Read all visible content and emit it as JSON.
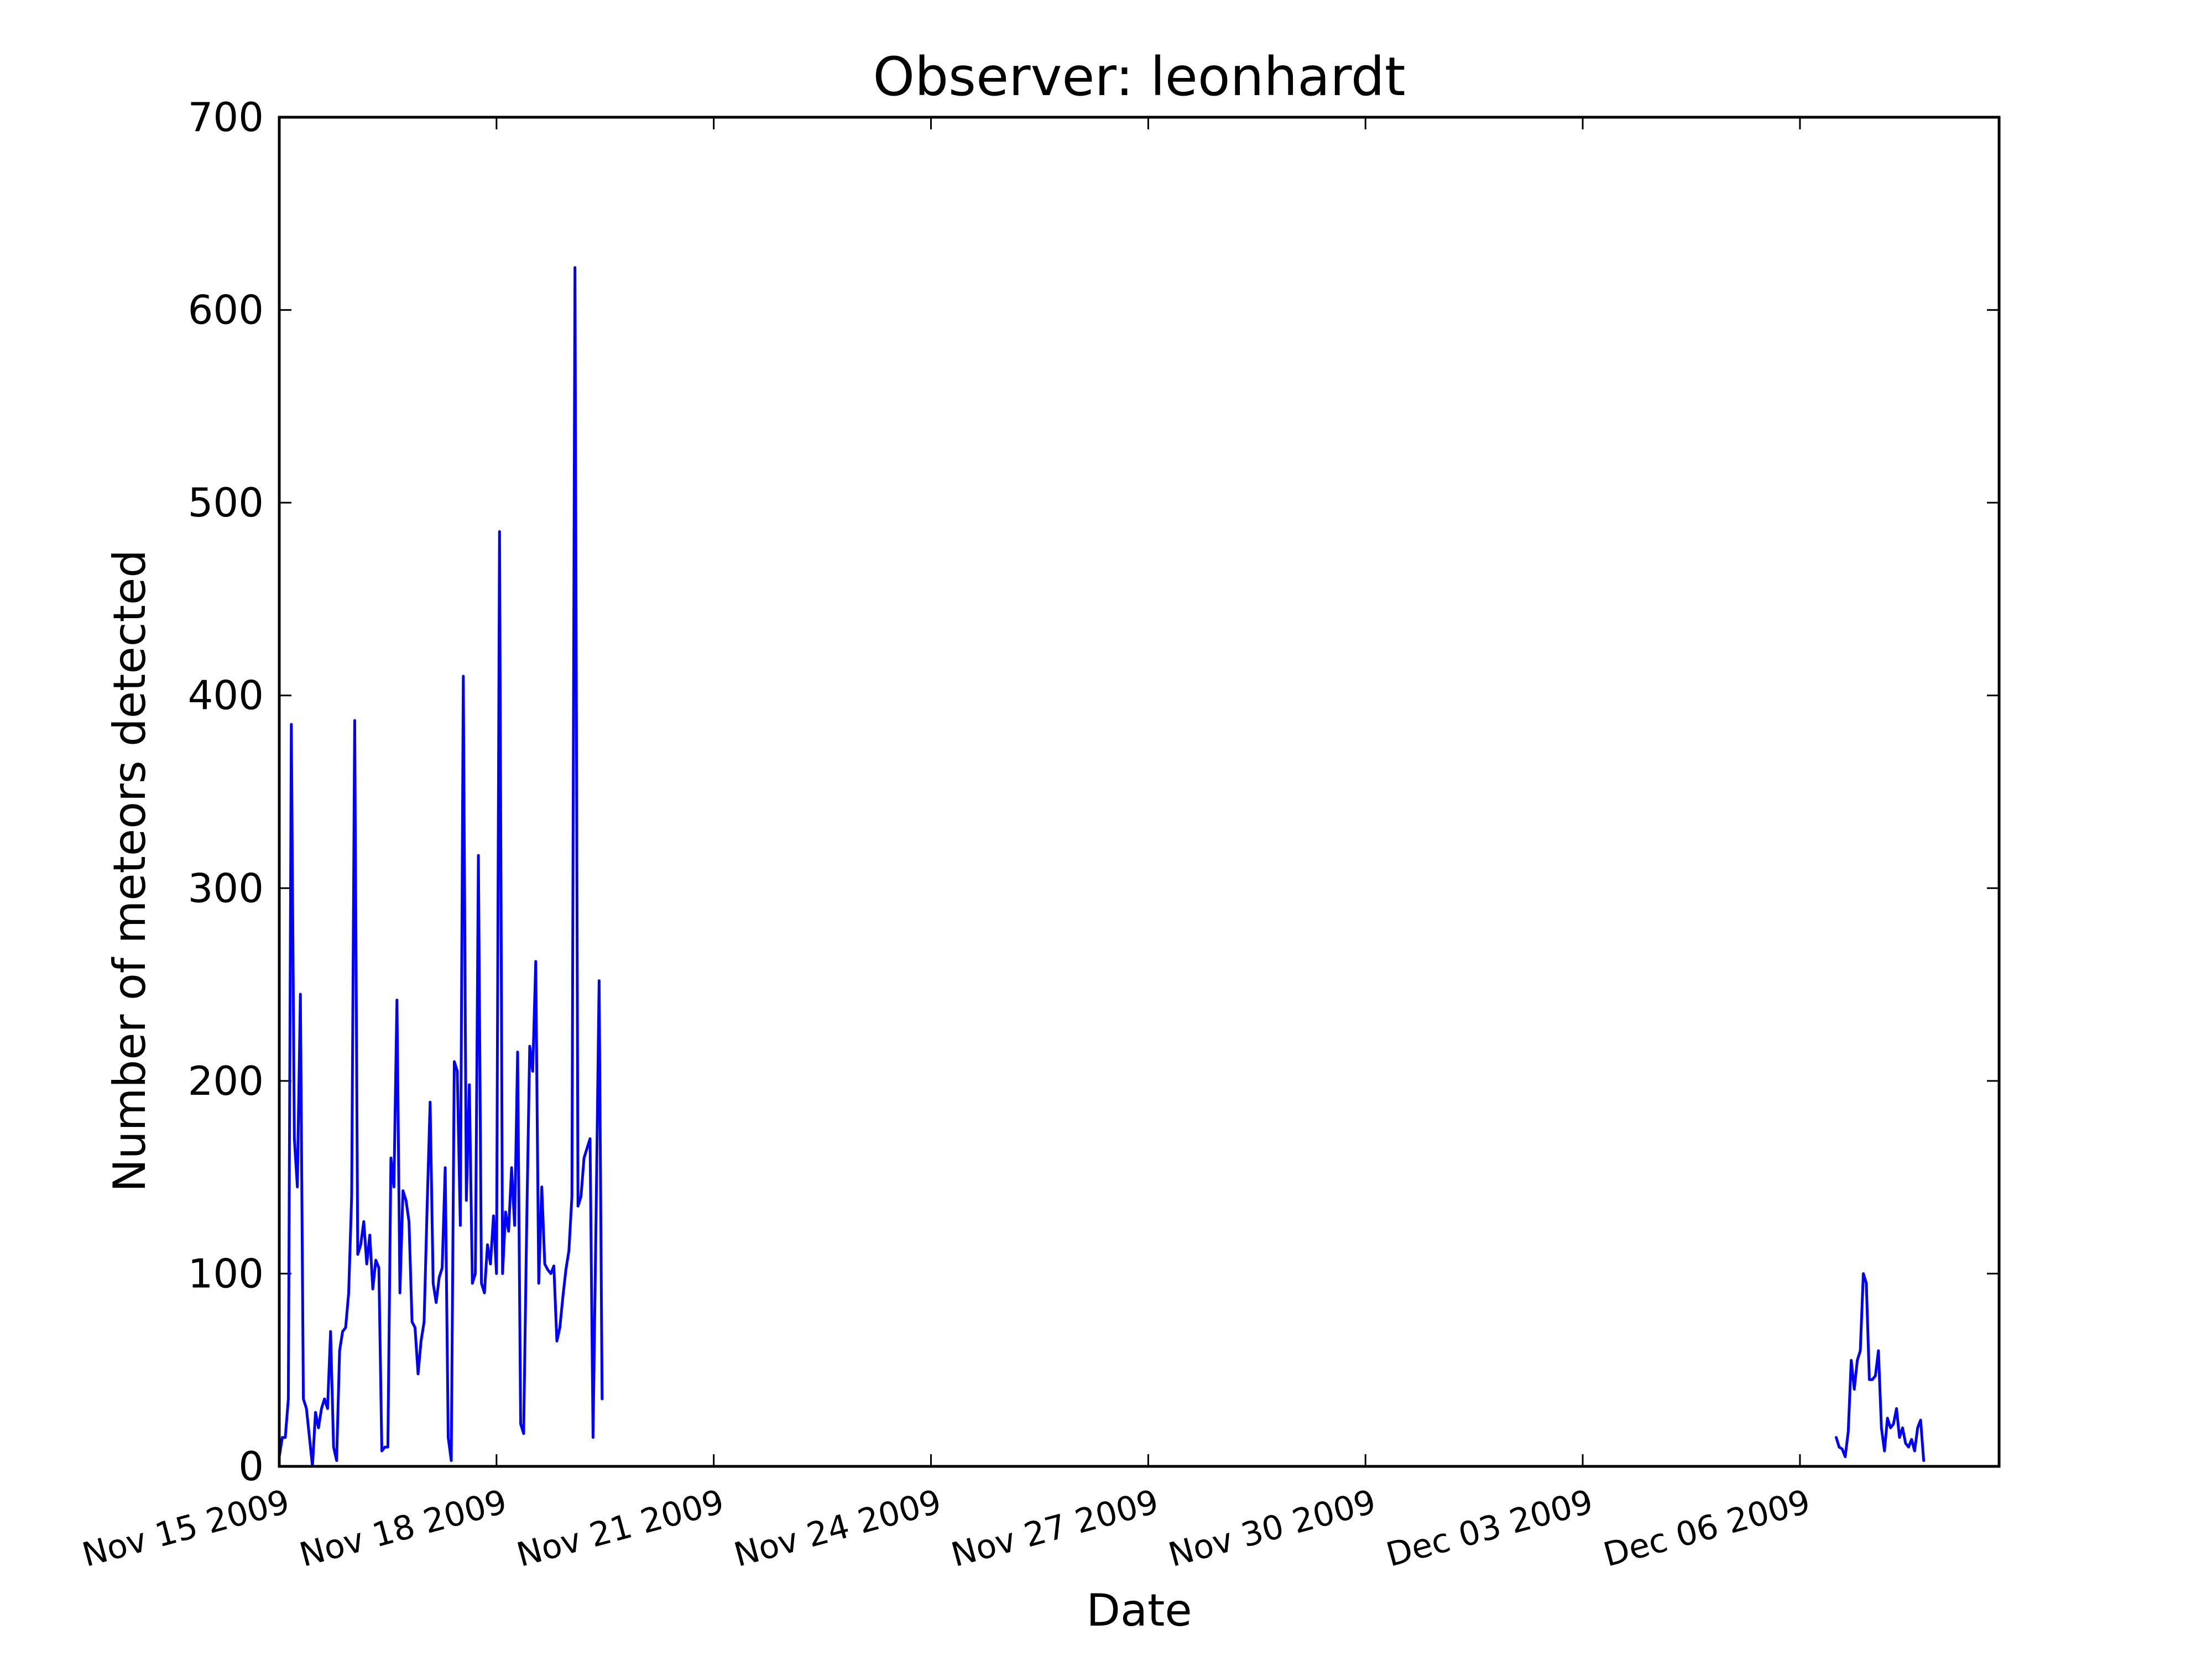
{
  "chart_data": {
    "type": "line",
    "title": "Observer: leonhardt",
    "xlabel": "Date",
    "ylabel": "Number of meteors detected",
    "ylim": [
      0,
      700
    ],
    "xlim": [
      "2009-11-15T00:00",
      "2009-12-08T18:00"
    ],
    "yticks": [
      0,
      100,
      200,
      300,
      400,
      500,
      600,
      700
    ],
    "xticks": [
      {
        "date": "2009-11-15T00:00",
        "label": "Nov 15 2009"
      },
      {
        "date": "2009-11-18T00:00",
        "label": "Nov 18 2009"
      },
      {
        "date": "2009-11-21T00:00",
        "label": "Nov 21 2009"
      },
      {
        "date": "2009-11-24T00:00",
        "label": "Nov 24 2009"
      },
      {
        "date": "2009-11-27T00:00",
        "label": "Nov 27 2009"
      },
      {
        "date": "2009-11-30T00:00",
        "label": "Nov 30 2009"
      },
      {
        "date": "2009-12-03T00:00",
        "label": "Dec 03 2009"
      },
      {
        "date": "2009-12-06T00:00",
        "label": "Dec 06 2009"
      }
    ],
    "grid": false,
    "legend": "none",
    "color": "#0000ff",
    "segments": [
      [
        [
          "2009-11-15T00:00",
          5
        ],
        [
          "2009-11-15T01:00",
          15
        ],
        [
          "2009-11-15T02:00",
          15
        ],
        [
          "2009-11-15T03:00",
          35
        ],
        [
          "2009-11-15T04:00",
          385
        ],
        [
          "2009-11-15T05:00",
          170
        ],
        [
          "2009-11-15T06:00",
          145
        ],
        [
          "2009-11-15T07:00",
          245
        ],
        [
          "2009-11-15T08:00",
          35
        ],
        [
          "2009-11-15T09:00",
          30
        ],
        [
          "2009-11-15T10:00",
          15
        ],
        [
          "2009-11-15T11:00",
          0
        ],
        [
          "2009-11-15T12:00",
          28
        ],
        [
          "2009-11-15T13:00",
          20
        ],
        [
          "2009-11-15T14:00",
          30
        ],
        [
          "2009-11-15T15:00",
          35
        ],
        [
          "2009-11-15T16:00",
          30
        ],
        [
          "2009-11-15T17:00",
          70
        ],
        [
          "2009-11-15T18:00",
          10
        ],
        [
          "2009-11-15T19:00",
          3
        ],
        [
          "2009-11-15T20:00",
          60
        ],
        [
          "2009-11-15T21:00",
          70
        ],
        [
          "2009-11-15T22:00",
          72
        ],
        [
          "2009-11-15T23:00",
          90
        ],
        [
          "2009-11-16T00:00",
          140
        ],
        [
          "2009-11-16T01:00",
          387
        ],
        [
          "2009-11-16T02:00",
          110
        ],
        [
          "2009-11-16T03:00",
          115
        ],
        [
          "2009-11-16T04:00",
          127
        ],
        [
          "2009-11-16T05:00",
          105
        ],
        [
          "2009-11-16T06:00",
          120
        ],
        [
          "2009-11-16T07:00",
          92
        ],
        [
          "2009-11-16T08:00",
          107
        ],
        [
          "2009-11-16T09:00",
          103
        ],
        [
          "2009-11-16T10:00",
          8
        ],
        [
          "2009-11-16T11:00",
          10
        ],
        [
          "2009-11-16T12:00",
          10
        ],
        [
          "2009-11-16T13:00",
          160
        ],
        [
          "2009-11-16T14:00",
          145
        ],
        [
          "2009-11-16T15:00",
          242
        ],
        [
          "2009-11-16T16:00",
          90
        ],
        [
          "2009-11-16T17:00",
          143
        ],
        [
          "2009-11-16T18:00",
          138
        ],
        [
          "2009-11-16T19:00",
          127
        ],
        [
          "2009-11-16T20:00",
          75
        ],
        [
          "2009-11-16T21:00",
          72
        ],
        [
          "2009-11-16T22:00",
          48
        ],
        [
          "2009-11-16T23:00",
          65
        ],
        [
          "2009-11-17T00:00",
          75
        ],
        [
          "2009-11-17T01:00",
          135
        ],
        [
          "2009-11-17T02:00",
          189
        ],
        [
          "2009-11-17T03:00",
          95
        ],
        [
          "2009-11-17T04:00",
          85
        ],
        [
          "2009-11-17T05:00",
          98
        ],
        [
          "2009-11-17T06:00",
          103
        ],
        [
          "2009-11-17T07:00",
          155
        ],
        [
          "2009-11-17T08:00",
          15
        ],
        [
          "2009-11-17T09:00",
          3
        ],
        [
          "2009-11-17T10:00",
          210
        ],
        [
          "2009-11-17T11:00",
          205
        ],
        [
          "2009-11-17T12:00",
          125
        ],
        [
          "2009-11-17T13:00",
          410
        ],
        [
          "2009-11-17T14:00",
          138
        ],
        [
          "2009-11-17T15:00",
          198
        ],
        [
          "2009-11-17T16:00",
          95
        ],
        [
          "2009-11-17T17:00",
          100
        ],
        [
          "2009-11-17T18:00",
          317
        ],
        [
          "2009-11-17T19:00",
          95
        ],
        [
          "2009-11-17T20:00",
          90
        ],
        [
          "2009-11-17T21:00",
          115
        ],
        [
          "2009-11-17T22:00",
          105
        ],
        [
          "2009-11-17T23:00",
          130
        ],
        [
          "2009-11-18T00:00",
          100
        ],
        [
          "2009-11-18T01:00",
          485
        ],
        [
          "2009-11-18T02:00",
          100
        ],
        [
          "2009-11-18T03:00",
          132
        ],
        [
          "2009-11-18T04:00",
          122
        ],
        [
          "2009-11-18T05:00",
          155
        ],
        [
          "2009-11-18T06:00",
          125
        ],
        [
          "2009-11-18T07:00",
          215
        ],
        [
          "2009-11-18T08:00",
          22
        ],
        [
          "2009-11-18T09:00",
          17
        ],
        [
          "2009-11-18T10:00",
          125
        ],
        [
          "2009-11-18T11:00",
          218
        ],
        [
          "2009-11-18T12:00",
          205
        ],
        [
          "2009-11-18T13:00",
          262
        ],
        [
          "2009-11-18T14:00",
          95
        ],
        [
          "2009-11-18T15:00",
          145
        ],
        [
          "2009-11-18T16:00",
          105
        ],
        [
          "2009-11-18T17:00",
          102
        ],
        [
          "2009-11-18T18:00",
          100
        ],
        [
          "2009-11-18T19:00",
          104
        ],
        [
          "2009-11-18T20:00",
          65
        ],
        [
          "2009-11-18T21:00",
          72
        ],
        [
          "2009-11-18T22:00",
          88
        ],
        [
          "2009-11-18T23:00",
          102
        ],
        [
          "2009-11-19T00:00",
          112
        ],
        [
          "2009-11-19T01:00",
          140
        ],
        [
          "2009-11-19T02:00",
          622
        ],
        [
          "2009-11-19T03:00",
          135
        ],
        [
          "2009-11-19T04:00",
          140
        ],
        [
          "2009-11-19T05:00",
          160
        ],
        [
          "2009-11-19T06:00",
          165
        ],
        [
          "2009-11-19T07:00",
          170
        ],
        [
          "2009-11-19T08:00",
          15
        ],
        [
          "2009-11-19T09:00",
          130
        ],
        [
          "2009-11-19T10:00",
          252
        ],
        [
          "2009-11-19T11:00",
          35
        ]
      ],
      [
        [
          "2009-12-06T12:00",
          15
        ],
        [
          "2009-12-06T13:00",
          10
        ],
        [
          "2009-12-06T14:00",
          9
        ],
        [
          "2009-12-06T15:00",
          5
        ],
        [
          "2009-12-06T16:00",
          18
        ],
        [
          "2009-12-06T17:00",
          55
        ],
        [
          "2009-12-06T18:00",
          40
        ],
        [
          "2009-12-06T19:00",
          55
        ],
        [
          "2009-12-06T20:00",
          60
        ],
        [
          "2009-12-06T21:00",
          100
        ],
        [
          "2009-12-06T22:00",
          95
        ],
        [
          "2009-12-06T23:00",
          45
        ],
        [
          "2009-12-07T00:00",
          45
        ],
        [
          "2009-12-07T01:00",
          47
        ],
        [
          "2009-12-07T02:00",
          60
        ],
        [
          "2009-12-07T03:00",
          20
        ],
        [
          "2009-12-07T04:00",
          8
        ],
        [
          "2009-12-07T05:00",
          25
        ],
        [
          "2009-12-07T06:00",
          20
        ],
        [
          "2009-12-07T07:00",
          22
        ],
        [
          "2009-12-07T08:00",
          30
        ],
        [
          "2009-12-07T09:00",
          15
        ],
        [
          "2009-12-07T10:00",
          20
        ],
        [
          "2009-12-07T11:00",
          12
        ],
        [
          "2009-12-07T12:00",
          10
        ],
        [
          "2009-12-07T13:00",
          14
        ],
        [
          "2009-12-07T14:00",
          8
        ],
        [
          "2009-12-07T15:00",
          20
        ],
        [
          "2009-12-07T16:00",
          24
        ],
        [
          "2009-12-07T17:00",
          3
        ]
      ]
    ]
  }
}
